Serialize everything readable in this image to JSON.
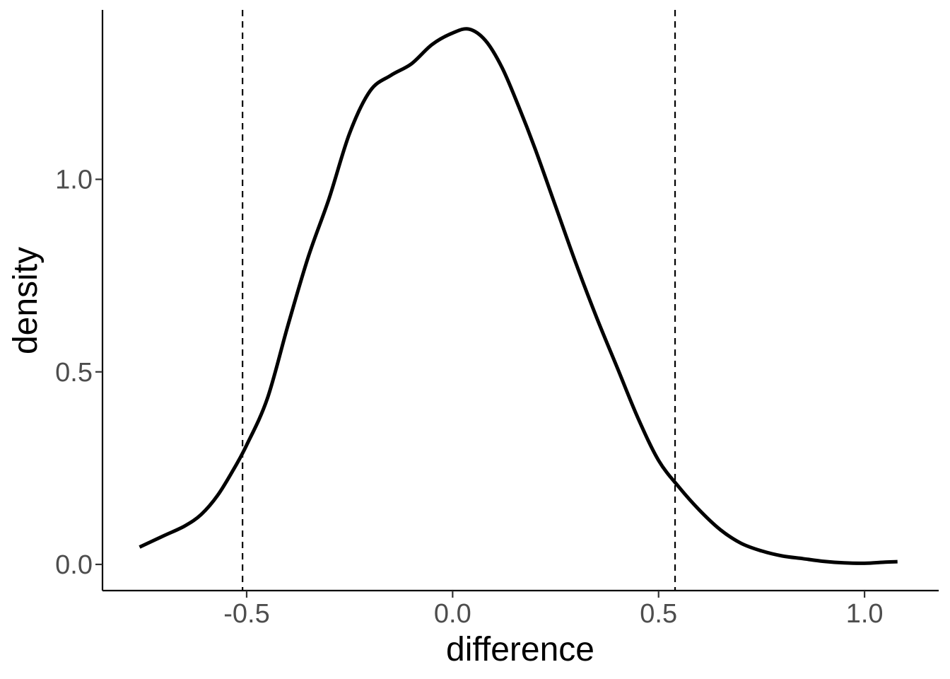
{
  "chart_data": {
    "type": "line",
    "xlabel": "difference",
    "ylabel": "density",
    "xlim": [
      -0.85,
      1.18
    ],
    "ylim": [
      -0.068,
      1.44
    ],
    "x_ticks": [
      -0.5,
      0.0,
      0.5,
      1.0
    ],
    "x_tick_labels": [
      "-0.5",
      "0.0",
      "0.5",
      "1.0"
    ],
    "y_ticks": [
      0.0,
      0.5,
      1.0
    ],
    "y_tick_labels": [
      "0.0",
      "0.5",
      "1.0"
    ],
    "grid": false,
    "vlines": [
      -0.51,
      0.54
    ],
    "series": [
      {
        "style": "solid",
        "color": "#000000",
        "x": [
          -0.76,
          -0.7,
          -0.65,
          -0.61,
          -0.57,
          -0.53,
          -0.5,
          -0.45,
          -0.4,
          -0.35,
          -0.3,
          -0.25,
          -0.2,
          -0.15,
          -0.1,
          -0.05,
          0.0,
          0.04,
          0.08,
          0.12,
          0.16,
          0.2,
          0.25,
          0.3,
          0.35,
          0.4,
          0.45,
          0.5,
          0.55,
          0.6,
          0.65,
          0.7,
          0.75,
          0.8,
          0.85,
          0.9,
          0.95,
          1.0,
          1.05,
          1.08
        ],
        "y": [
          0.045,
          0.075,
          0.1,
          0.13,
          0.18,
          0.25,
          0.31,
          0.43,
          0.62,
          0.8,
          0.95,
          1.12,
          1.23,
          1.27,
          1.3,
          1.35,
          1.38,
          1.39,
          1.36,
          1.29,
          1.19,
          1.08,
          0.93,
          0.78,
          0.64,
          0.51,
          0.38,
          0.27,
          0.2,
          0.14,
          0.09,
          0.055,
          0.035,
          0.022,
          0.015,
          0.008,
          0.004,
          0.003,
          0.006,
          0.007
        ]
      }
    ]
  }
}
